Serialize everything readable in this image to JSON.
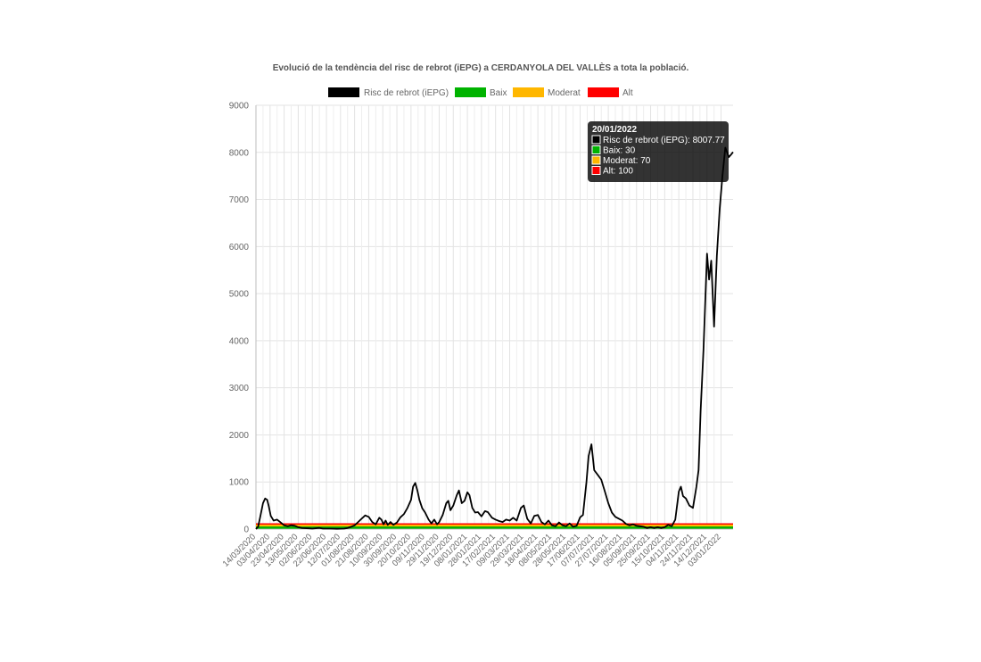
{
  "chart_data": {
    "type": "line",
    "title": "Evolució de la tendència del risc de rebrot (iEPG) a CERDANYOLA DEL VALLÈS a tota la població.",
    "xlabel": "",
    "ylabel": "",
    "ylim": [
      0,
      9000
    ],
    "yticks": [
      0,
      1000,
      2000,
      3000,
      4000,
      5000,
      6000,
      7000,
      8000,
      9000
    ],
    "grid": true,
    "legend_position": "top",
    "x_tick_labels": [
      "14/03/2020",
      "03/04/2020",
      "23/04/2020",
      "13/05/2020",
      "02/06/2020",
      "22/06/2020",
      "12/07/2020",
      "01/08/2020",
      "21/08/2020",
      "10/09/2020",
      "30/09/2020",
      "20/10/2020",
      "09/11/2020",
      "29/11/2020",
      "19/12/2020",
      "08/01/2021",
      "28/01/2021",
      "17/02/2021",
      "09/03/2021",
      "29/03/2021",
      "18/04/2021",
      "08/05/2021",
      "28/05/2021",
      "17/06/2021",
      "07/07/2021",
      "27/07/2021",
      "16/08/2021",
      "05/09/2021",
      "25/09/2021",
      "15/10/2021",
      "04/11/2021",
      "24/11/2021",
      "14/12/2021",
      "03/01/2022"
    ],
    "x_start": "14/03/2020",
    "x_end": "20/01/2022",
    "series": [
      {
        "name": "Risc de rebrot (iEPG)",
        "color": "#000000",
        "points": [
          [
            "14/03/2020",
            0
          ],
          [
            "17/03/2020",
            50
          ],
          [
            "20/03/2020",
            250
          ],
          [
            "24/03/2020",
            550
          ],
          [
            "27/03/2020",
            650
          ],
          [
            "30/03/2020",
            620
          ],
          [
            "01/04/2020",
            500
          ],
          [
            "04/04/2020",
            280
          ],
          [
            "08/04/2020",
            180
          ],
          [
            "13/04/2020",
            200
          ],
          [
            "18/04/2020",
            140
          ],
          [
            "23/04/2020",
            80
          ],
          [
            "28/04/2020",
            60
          ],
          [
            "03/05/2020",
            80
          ],
          [
            "08/05/2020",
            70
          ],
          [
            "13/05/2020",
            40
          ],
          [
            "18/05/2020",
            20
          ],
          [
            "28/05/2020",
            15
          ],
          [
            "02/06/2020",
            10
          ],
          [
            "12/06/2020",
            25
          ],
          [
            "17/06/2020",
            10
          ],
          [
            "27/06/2020",
            10
          ],
          [
            "07/07/2020",
            5
          ],
          [
            "17/07/2020",
            10
          ],
          [
            "22/07/2020",
            20
          ],
          [
            "27/07/2020",
            50
          ],
          [
            "01/08/2020",
            80
          ],
          [
            "06/08/2020",
            150
          ],
          [
            "11/08/2020",
            220
          ],
          [
            "16/08/2020",
            290
          ],
          [
            "21/08/2020",
            260
          ],
          [
            "26/08/2020",
            150
          ],
          [
            "31/08/2020",
            100
          ],
          [
            "05/09/2020",
            240
          ],
          [
            "08/09/2020",
            200
          ],
          [
            "11/09/2020",
            100
          ],
          [
            "14/09/2020",
            180
          ],
          [
            "17/09/2020",
            90
          ],
          [
            "21/09/2020",
            150
          ],
          [
            "25/09/2020",
            90
          ],
          [
            "30/09/2020",
            140
          ],
          [
            "05/10/2020",
            250
          ],
          [
            "10/10/2020",
            320
          ],
          [
            "15/10/2020",
            450
          ],
          [
            "20/10/2020",
            620
          ],
          [
            "23/10/2020",
            900
          ],
          [
            "26/10/2020",
            980
          ],
          [
            "29/10/2020",
            820
          ],
          [
            "01/11/2020",
            620
          ],
          [
            "05/11/2020",
            440
          ],
          [
            "09/11/2020",
            350
          ],
          [
            "14/11/2020",
            200
          ],
          [
            "18/11/2020",
            120
          ],
          [
            "22/11/2020",
            200
          ],
          [
            "26/11/2020",
            100
          ],
          [
            "29/11/2020",
            150
          ],
          [
            "04/12/2020",
            300
          ],
          [
            "09/12/2020",
            550
          ],
          [
            "12/12/2020",
            600
          ],
          [
            "15/12/2020",
            400
          ],
          [
            "19/12/2020",
            500
          ],
          [
            "24/12/2020",
            720
          ],
          [
            "27/12/2020",
            820
          ],
          [
            "31/12/2020",
            550
          ],
          [
            "04/01/2021",
            600
          ],
          [
            "08/01/2021",
            780
          ],
          [
            "11/01/2021",
            720
          ],
          [
            "15/01/2021",
            450
          ],
          [
            "19/01/2021",
            350
          ],
          [
            "23/01/2021",
            360
          ],
          [
            "28/01/2021",
            270
          ],
          [
            "02/02/2021",
            380
          ],
          [
            "06/02/2021",
            360
          ],
          [
            "12/02/2021",
            240
          ],
          [
            "17/02/2021",
            200
          ],
          [
            "22/02/2021",
            170
          ],
          [
            "27/02/2021",
            150
          ],
          [
            "04/03/2021",
            200
          ],
          [
            "09/03/2021",
            180
          ],
          [
            "14/03/2021",
            240
          ],
          [
            "19/03/2021",
            180
          ],
          [
            "25/03/2021",
            450
          ],
          [
            "29/03/2021",
            500
          ],
          [
            "03/04/2021",
            220
          ],
          [
            "08/04/2021",
            120
          ],
          [
            "13/04/2021",
            280
          ],
          [
            "18/04/2021",
            300
          ],
          [
            "23/04/2021",
            150
          ],
          [
            "28/04/2021",
            100
          ],
          [
            "03/05/2021",
            180
          ],
          [
            "08/05/2021",
            80
          ],
          [
            "13/05/2021",
            60
          ],
          [
            "18/05/2021",
            140
          ],
          [
            "23/05/2021",
            80
          ],
          [
            "28/05/2021",
            60
          ],
          [
            "02/06/2021",
            120
          ],
          [
            "07/06/2021",
            50
          ],
          [
            "12/06/2021",
            70
          ],
          [
            "17/06/2021",
            250
          ],
          [
            "21/06/2021",
            300
          ],
          [
            "26/06/2021",
            1000
          ],
          [
            "29/06/2021",
            1550
          ],
          [
            "03/07/2021",
            1800
          ],
          [
            "07/07/2021",
            1250
          ],
          [
            "12/07/2021",
            1150
          ],
          [
            "17/07/2021",
            1050
          ],
          [
            "22/07/2021",
            800
          ],
          [
            "27/07/2021",
            550
          ],
          [
            "01/08/2021",
            350
          ],
          [
            "06/08/2021",
            260
          ],
          [
            "11/08/2021",
            220
          ],
          [
            "16/08/2021",
            180
          ],
          [
            "21/08/2021",
            110
          ],
          [
            "26/08/2021",
            80
          ],
          [
            "31/08/2021",
            100
          ],
          [
            "05/09/2021",
            70
          ],
          [
            "10/09/2021",
            60
          ],
          [
            "15/09/2021",
            50
          ],
          [
            "20/09/2021",
            20
          ],
          [
            "25/09/2021",
            40
          ],
          [
            "30/09/2021",
            20
          ],
          [
            "05/10/2021",
            40
          ],
          [
            "10/10/2021",
            20
          ],
          [
            "15/10/2021",
            40
          ],
          [
            "20/10/2021",
            90
          ],
          [
            "25/10/2021",
            60
          ],
          [
            "30/10/2021",
            200
          ],
          [
            "04/11/2021",
            800
          ],
          [
            "07/11/2021",
            900
          ],
          [
            "10/11/2021",
            700
          ],
          [
            "14/11/2021",
            650
          ],
          [
            "19/11/2021",
            500
          ],
          [
            "24/11/2021",
            450
          ],
          [
            "29/11/2021",
            900
          ],
          [
            "02/12/2021",
            1250
          ],
          [
            "05/12/2021",
            2500
          ],
          [
            "09/12/2021",
            3800
          ],
          [
            "14/12/2021",
            5850
          ],
          [
            "17/12/2021",
            5300
          ],
          [
            "20/12/2021",
            5700
          ],
          [
            "24/12/2021",
            4300
          ],
          [
            "28/12/2021",
            5800
          ],
          [
            "01/01/2022",
            6800
          ],
          [
            "05/01/2022",
            7500
          ],
          [
            "09/01/2022",
            8100
          ],
          [
            "14/01/2022",
            7900
          ],
          [
            "17/01/2022",
            7950
          ],
          [
            "20/01/2022",
            8007.77
          ]
        ]
      },
      {
        "name": "Baix",
        "color": "#00b300",
        "constant": 30
      },
      {
        "name": "Moderat",
        "color": "#ffb700",
        "constant": 70
      },
      {
        "name": "Alt",
        "color": "#ff0000",
        "constant": 100
      }
    ],
    "tooltip": {
      "title": "20/01/2022",
      "lines": [
        {
          "label": "Risc de rebrot (iEPG): 8007.77",
          "color": "#000000"
        },
        {
          "label": "Baix: 30",
          "color": "#00b300"
        },
        {
          "label": "Moderat: 70",
          "color": "#ffb700"
        },
        {
          "label": "Alt: 100",
          "color": "#ff0000"
        }
      ]
    }
  }
}
